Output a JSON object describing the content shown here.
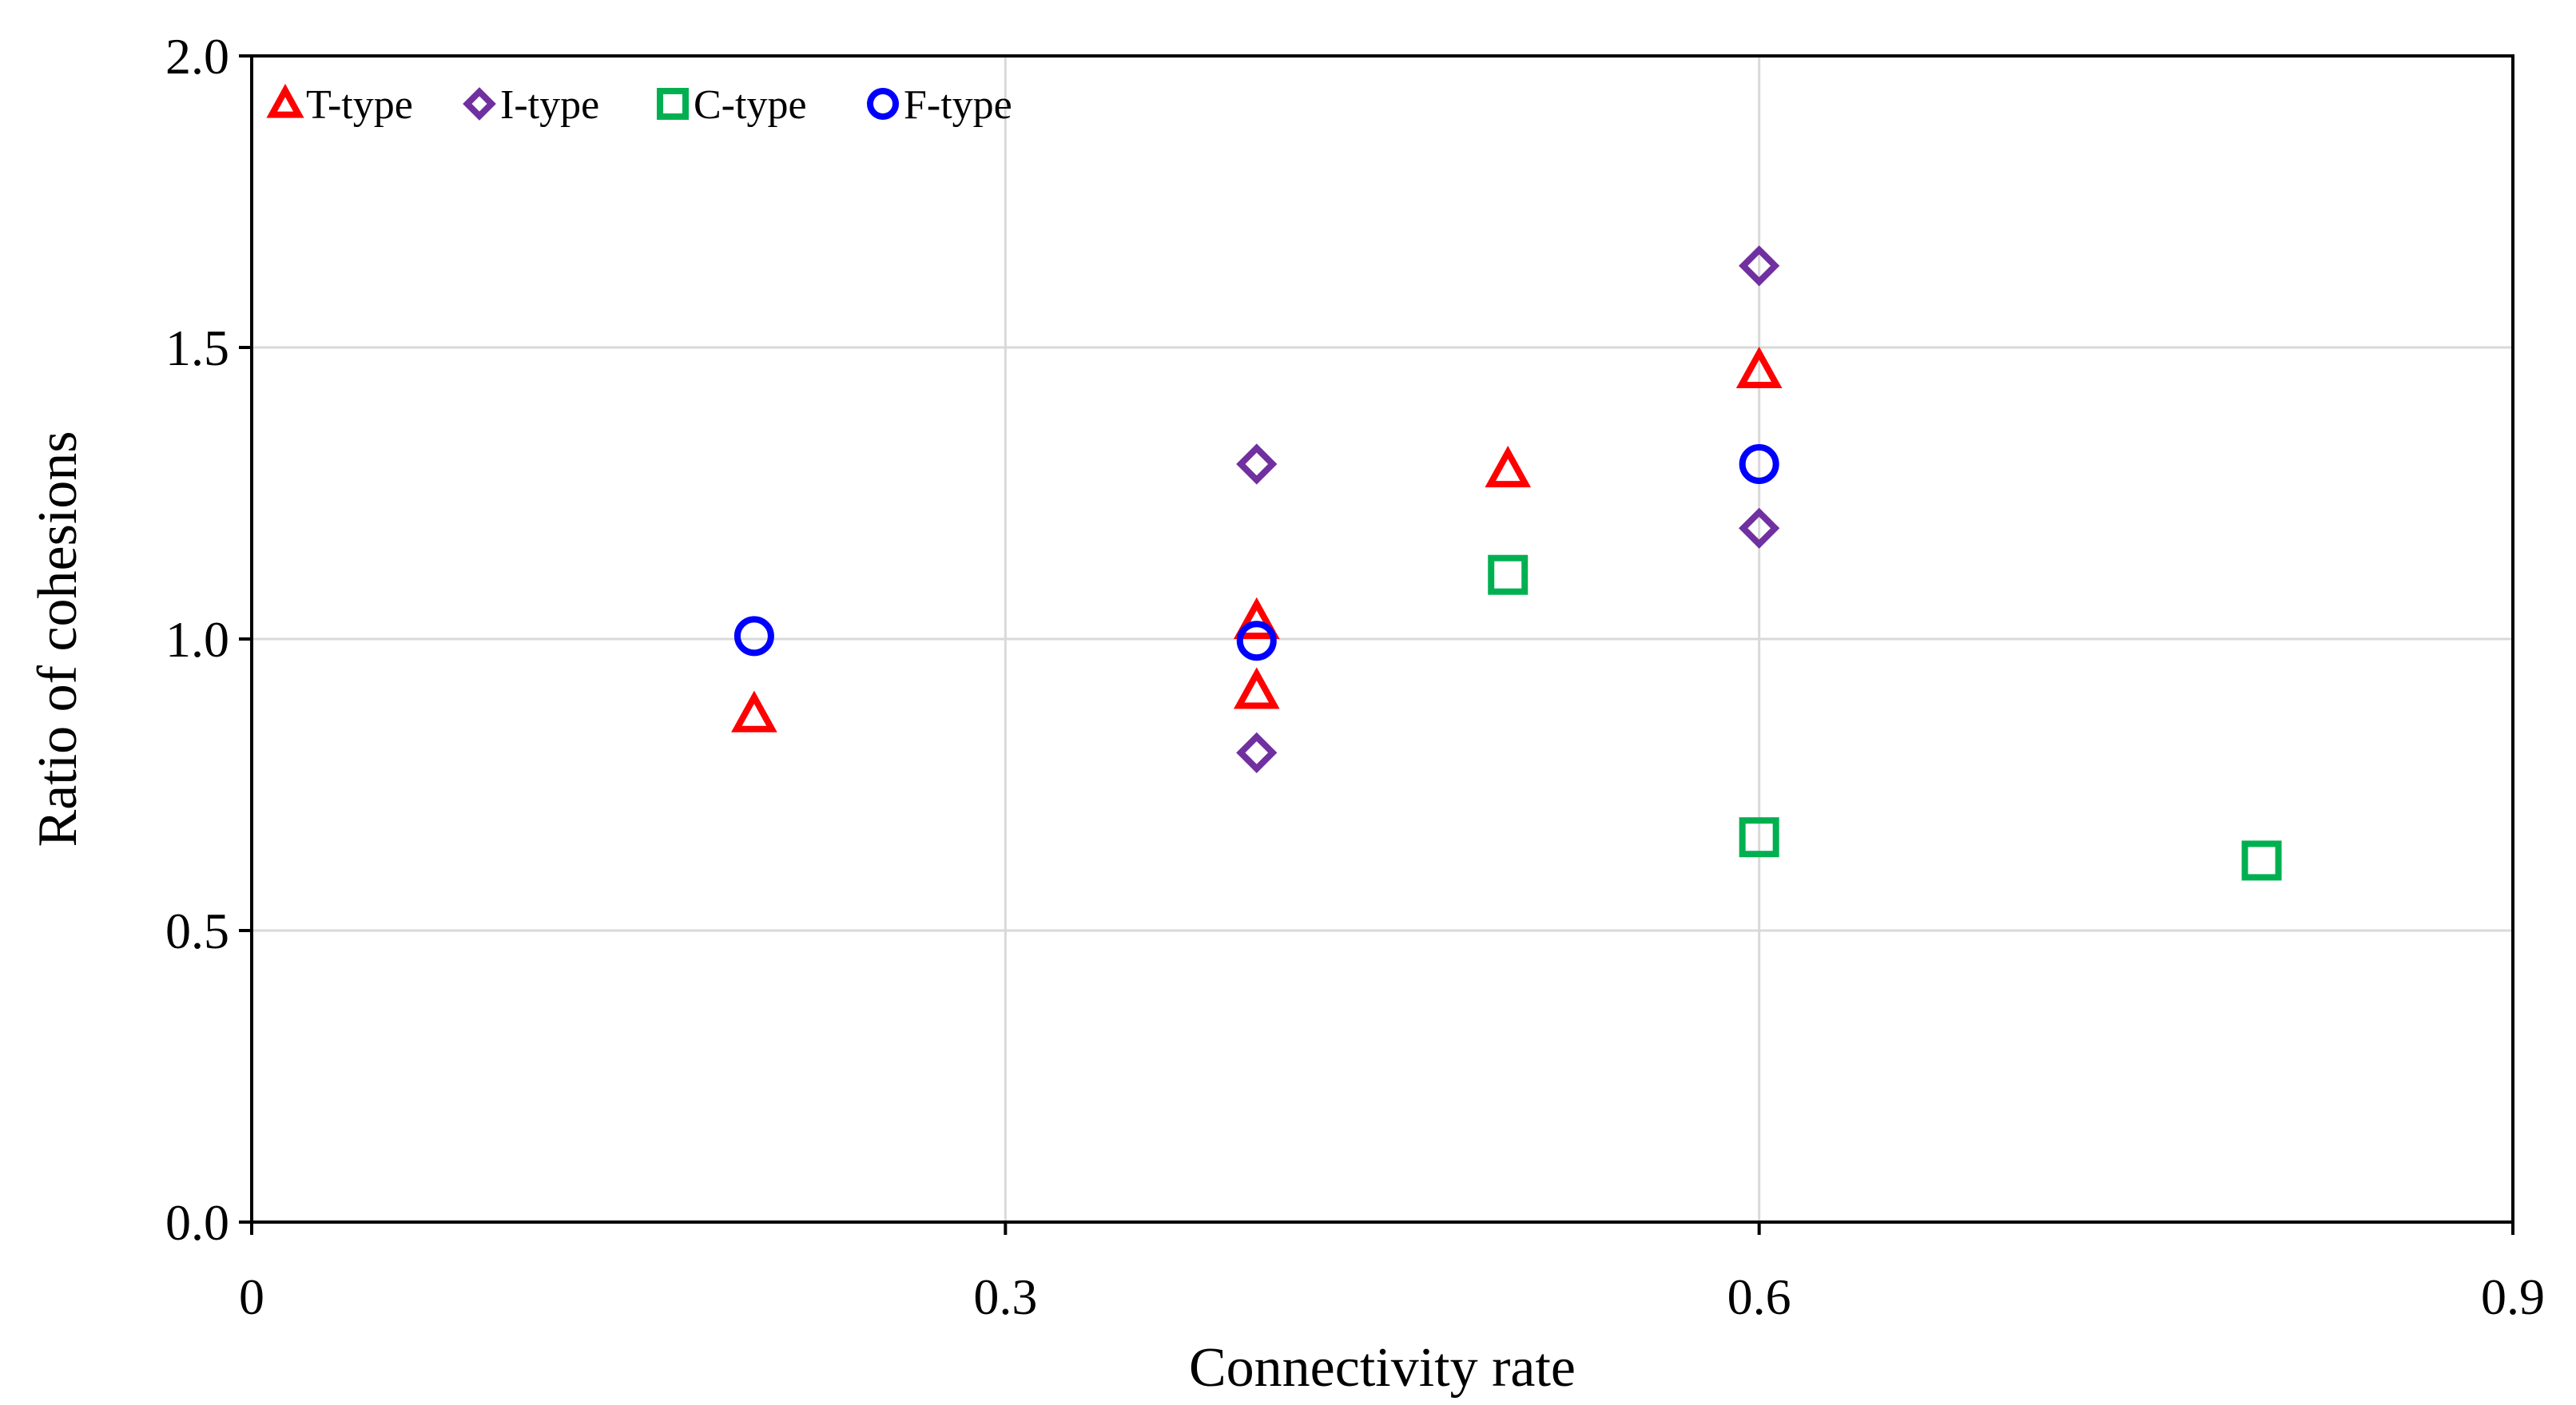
{
  "chart_data": {
    "type": "scatter",
    "title": "",
    "xlabel": "Connectivity rate",
    "ylabel": "Ratio of cohesions",
    "xlim": [
      0,
      0.9
    ],
    "ylim": [
      0,
      2.0
    ],
    "x_ticks": [
      0,
      0.3,
      0.6,
      0.9
    ],
    "x_tick_labels": [
      "0",
      "0.3",
      "0.6",
      "0.9"
    ],
    "y_ticks": [
      0,
      0.5,
      1.0,
      1.5,
      2.0
    ],
    "y_tick_labels": [
      "0.0",
      "0.5",
      "1.0",
      "1.5",
      "2.0"
    ],
    "grid": true,
    "legend_position": "top-left",
    "series": [
      {
        "name": "T-type",
        "marker": "triangle",
        "color": "#ff0000",
        "points": [
          {
            "x": 0.2,
            "y": 0.87
          },
          {
            "x": 0.4,
            "y": 1.03
          },
          {
            "x": 0.4,
            "y": 0.91
          },
          {
            "x": 0.5,
            "y": 1.29
          },
          {
            "x": 0.6,
            "y": 1.46
          }
        ]
      },
      {
        "name": "I-type",
        "marker": "diamond",
        "color": "#7030a0",
        "points": [
          {
            "x": 0.4,
            "y": 1.3
          },
          {
            "x": 0.4,
            "y": 0.805
          },
          {
            "x": 0.6,
            "y": 1.64
          },
          {
            "x": 0.6,
            "y": 1.19
          }
        ]
      },
      {
        "name": "C-type",
        "marker": "square",
        "color": "#00b050",
        "points": [
          {
            "x": 0.5,
            "y": 1.11
          },
          {
            "x": 0.6,
            "y": 0.66
          },
          {
            "x": 0.8,
            "y": 0.62
          }
        ]
      },
      {
        "name": "F-type",
        "marker": "circle",
        "color": "#0000ff",
        "points": [
          {
            "x": 0.2,
            "y": 1.005
          },
          {
            "x": 0.4,
            "y": 0.997
          },
          {
            "x": 0.6,
            "y": 1.3
          }
        ]
      }
    ]
  }
}
